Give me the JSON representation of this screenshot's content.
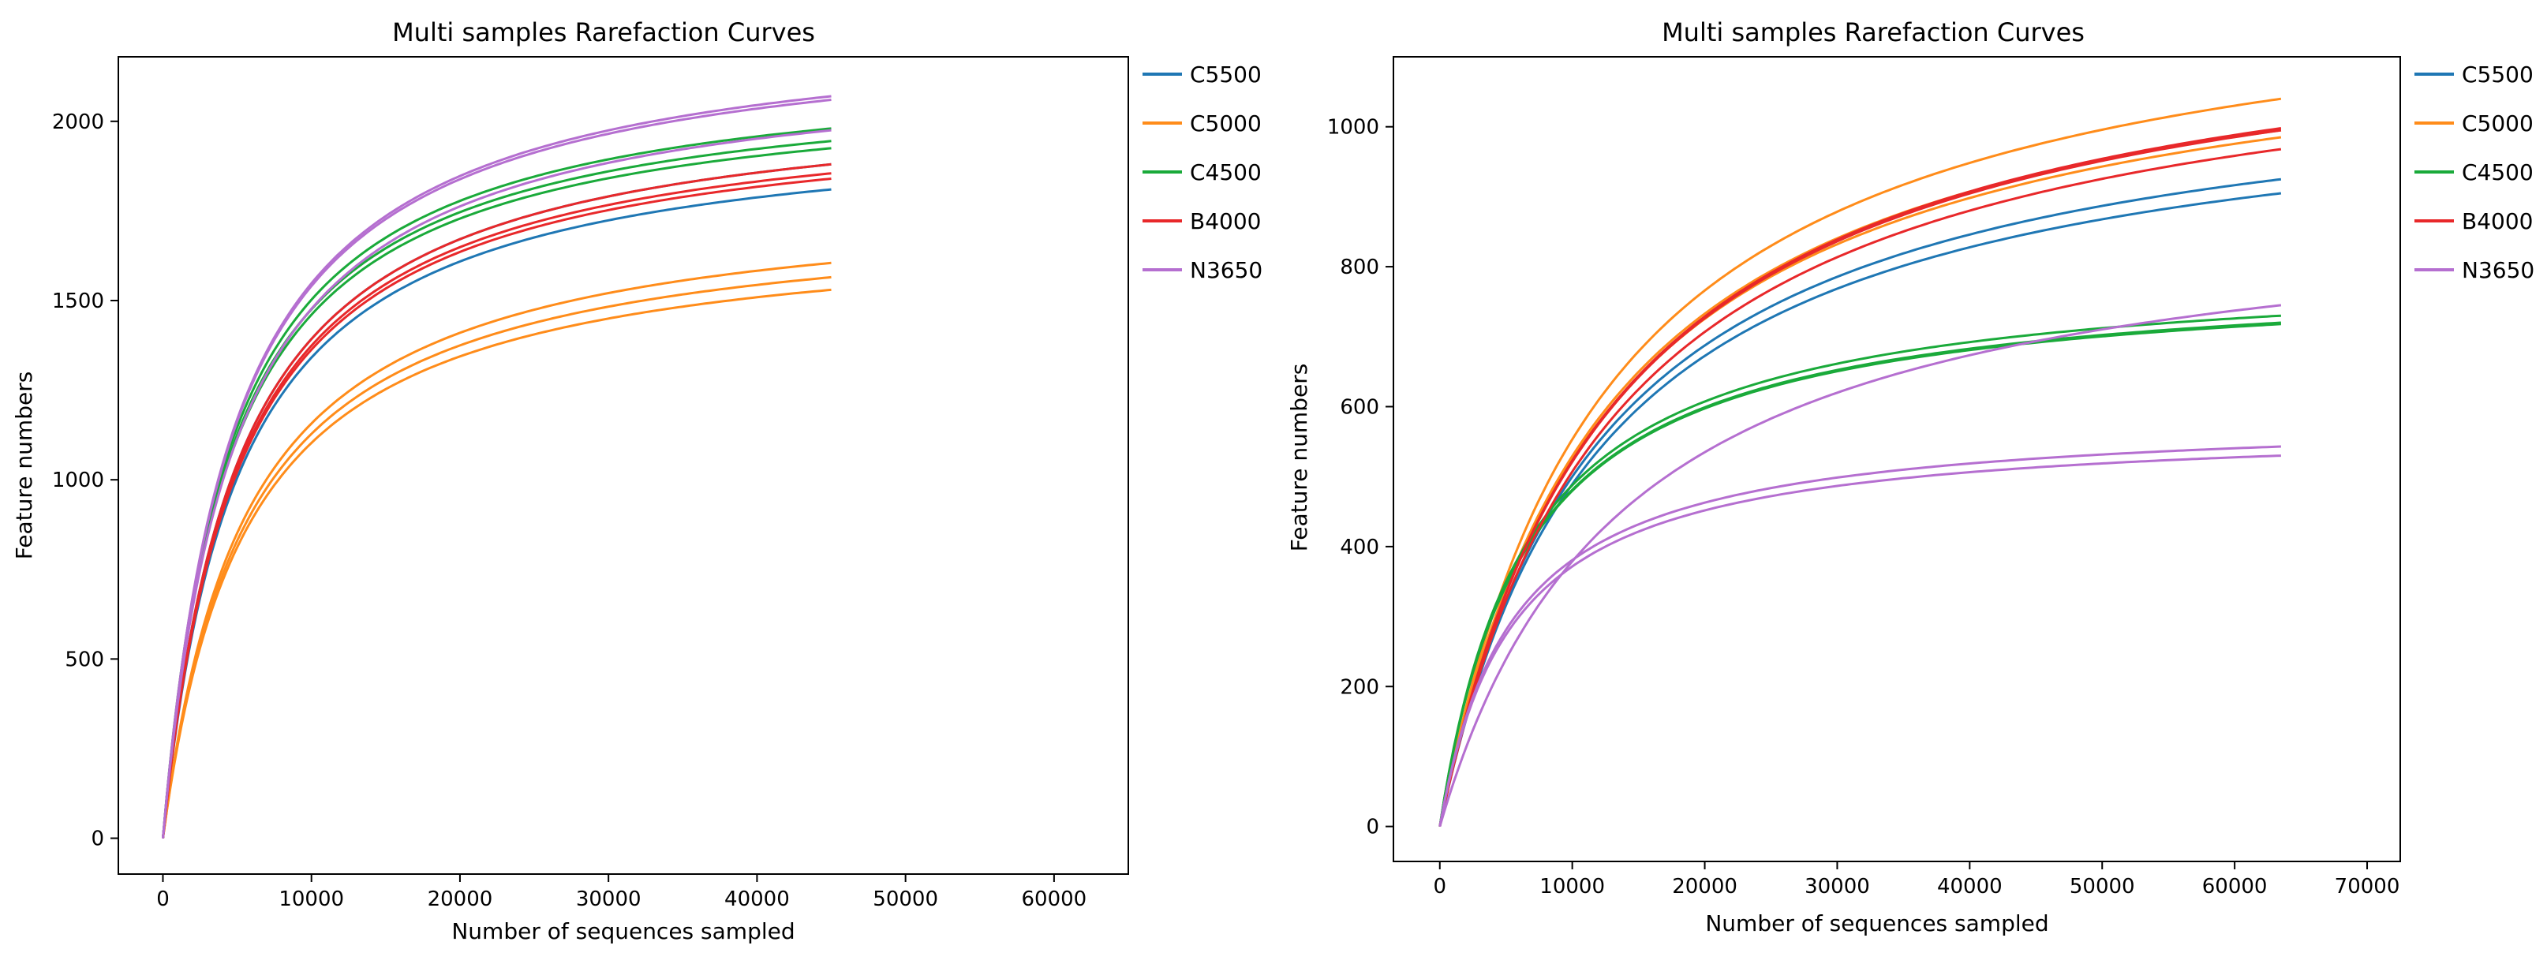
{
  "colors": {
    "C5500": "#1f77b4",
    "C5000": "#ff8c1a",
    "C4500": "#1aaa3a",
    "B4000": "#e8282a",
    "N3650": "#b56fd0"
  },
  "chart_data": [
    {
      "type": "line",
      "title": "Multi samples Rarefaction Curves",
      "xlabel": "Number of sequences sampled",
      "ylabel": "Feature numbers",
      "xlim": [
        -3000,
        65000
      ],
      "ylim": [
        -100,
        2180
      ],
      "xticks": [
        0,
        10000,
        20000,
        30000,
        40000,
        50000,
        60000
      ],
      "yticks": [
        0,
        500,
        1000,
        1500,
        2000
      ],
      "x_max": 45000,
      "legend": [
        "C5500",
        "C5000",
        "C4500",
        "B4000",
        "N3650"
      ],
      "legend_position": "outside-right",
      "series": [
        {
          "name": "C5500",
          "curves": [
            {
              "final": 1810,
              "k": 5000
            },
            {
              "final": 1880,
              "k": 5000
            }
          ]
        },
        {
          "name": "C5000",
          "curves": [
            {
              "final": 1605,
              "k": 5600
            },
            {
              "final": 1565,
              "k": 5600
            },
            {
              "final": 1530,
              "k": 5600
            }
          ]
        },
        {
          "name": "C4500",
          "curves": [
            {
              "final": 1980,
              "k": 4500
            },
            {
              "final": 1945,
              "k": 4500
            },
            {
              "final": 1925,
              "k": 4500
            }
          ]
        },
        {
          "name": "B4000",
          "curves": [
            {
              "final": 1880,
              "k": 5000
            },
            {
              "final": 1855,
              "k": 5000
            },
            {
              "final": 1840,
              "k": 5000
            }
          ]
        },
        {
          "name": "N3650",
          "curves": [
            {
              "final": 2070,
              "k": 4800
            },
            {
              "final": 2060,
              "k": 4800
            },
            {
              "final": 1975,
              "k": 4800
            }
          ]
        }
      ]
    },
    {
      "type": "line",
      "title": "Multi samples Rarefaction Curves",
      "xlabel": "Number of sequences sampled",
      "ylabel": "Feature numbers",
      "xlim": [
        -3500,
        72500
      ],
      "ylim": [
        -50,
        1100
      ],
      "xticks": [
        0,
        10000,
        20000,
        30000,
        40000,
        50000,
        60000,
        70000
      ],
      "yticks": [
        0,
        200,
        400,
        600,
        800,
        1000
      ],
      "x_max": 63500,
      "legend": [
        "C5500",
        "C5000",
        "C4500",
        "B4000",
        "N3650"
      ],
      "legend_position": "outside-right",
      "series": [
        {
          "name": "C5500",
          "curves": [
            {
              "final": 925,
              "k": 12000
            },
            {
              "final": 905,
              "k": 12000
            }
          ]
        },
        {
          "name": "C5000",
          "curves": [
            {
              "final": 1040,
              "k": 12500
            },
            {
              "final": 995,
              "k": 12500
            },
            {
              "final": 985,
              "k": 12500
            }
          ]
        },
        {
          "name": "C4500",
          "curves": [
            {
              "final": 730,
              "k": 6500
            },
            {
              "final": 720,
              "k": 6500
            },
            {
              "final": 718,
              "k": 6500
            }
          ]
        },
        {
          "name": "B4000",
          "curves": [
            {
              "final": 998,
              "k": 13000
            },
            {
              "final": 995,
              "k": 13000
            },
            {
              "final": 968,
              "k": 13000
            }
          ]
        },
        {
          "name": "N3650",
          "curves": [
            {
              "final": 745,
              "k": 14000
            },
            {
              "final": 543,
              "k": 5500
            },
            {
              "final": 530,
              "k": 5500
            }
          ]
        }
      ]
    }
  ]
}
